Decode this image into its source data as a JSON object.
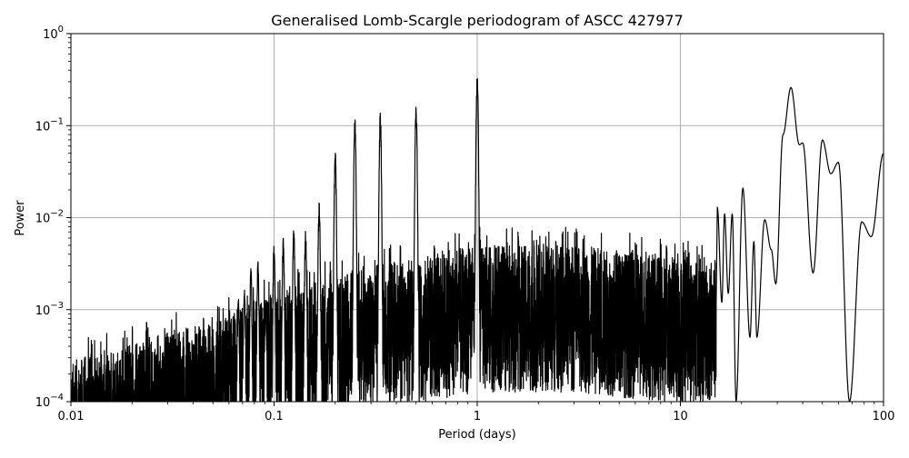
{
  "chart_data": {
    "type": "line",
    "title": "Generalised Lomb-Scargle periodogram of ASCC 427977",
    "xlabel": "Period (days)",
    "ylabel": "Power",
    "xscale": "log",
    "yscale": "log",
    "xlim": [
      0.01,
      100
    ],
    "ylim": [
      0.0001,
      1
    ],
    "grid": true,
    "legend": null,
    "x_ticks": [
      0.01,
      0.1,
      1,
      10,
      100
    ],
    "x_tick_labels": [
      "0.01",
      "0.1",
      "1",
      "10",
      "100"
    ],
    "y_ticks": [
      0.0001,
      0.001,
      0.01,
      0.1,
      1
    ],
    "y_tick_labels": [
      {
        "base": "10",
        "exp": "−4"
      },
      {
        "base": "10",
        "exp": "−3"
      },
      {
        "base": "10",
        "exp": "−2"
      },
      {
        "base": "10",
        "exp": "−1"
      },
      {
        "base": "10",
        "exp": "0"
      }
    ],
    "line_color": "#000000",
    "grid_color": "#b0b0b0",
    "noise_floor": {
      "description": "Dense noise rising with period",
      "points": [
        {
          "period": 0.01,
          "power": 0.00011
        },
        {
          "period": 0.02,
          "power": 0.00018
        },
        {
          "period": 0.05,
          "power": 0.0003
        },
        {
          "period": 0.1,
          "power": 0.0006
        },
        {
          "period": 0.3,
          "power": 0.0012
        },
        {
          "period": 1.0,
          "power": 0.002
        },
        {
          "period": 3.0,
          "power": 0.002
        },
        {
          "period": 10.0,
          "power": 0.0015
        }
      ]
    },
    "alias_peaks": [
      {
        "period": 0.0909,
        "power": 0.0013
      },
      {
        "period": 0.1,
        "power": 0.0058
      },
      {
        "period": 0.111,
        "power": 0.006
      },
      {
        "period": 0.125,
        "power": 0.0085
      },
      {
        "period": 0.1429,
        "power": 0.0073
      },
      {
        "period": 0.1667,
        "power": 0.015
      },
      {
        "period": 0.2,
        "power": 0.055
      },
      {
        "period": 0.25,
        "power": 0.12
      },
      {
        "period": 0.3333,
        "power": 0.14
      },
      {
        "period": 0.5,
        "power": 0.17
      },
      {
        "period": 1.0,
        "power": 0.36
      },
      {
        "period": 0.0833,
        "power": 0.0035
      },
      {
        "period": 0.0769,
        "power": 0.0029
      },
      {
        "period": 0.0714,
        "power": 0.0017
      },
      {
        "period": 0.0667,
        "power": 0.0014
      }
    ],
    "long_period_curve": [
      {
        "period": 15.2,
        "power": 0.013
      },
      {
        "period": 16.0,
        "power": 0.0012
      },
      {
        "period": 16.5,
        "power": 0.011
      },
      {
        "period": 17.2,
        "power": 0.0015
      },
      {
        "period": 18.0,
        "power": 0.011
      },
      {
        "period": 18.8,
        "power": 0.0001
      },
      {
        "period": 20.3,
        "power": 0.021
      },
      {
        "period": 22.0,
        "power": 0.0005
      },
      {
        "period": 23.0,
        "power": 0.0055
      },
      {
        "period": 23.8,
        "power": 0.0005
      },
      {
        "period": 26.0,
        "power": 0.0095
      },
      {
        "period": 28.0,
        "power": 0.0045
      },
      {
        "period": 29.5,
        "power": 0.0019
      },
      {
        "period": 32.0,
        "power": 0.08
      },
      {
        "period": 35.0,
        "power": 0.26
      },
      {
        "period": 38.5,
        "power": 0.062
      },
      {
        "period": 40.0,
        "power": 0.065
      },
      {
        "period": 45.0,
        "power": 0.0025
      },
      {
        "period": 50.0,
        "power": 0.07
      },
      {
        "period": 55.0,
        "power": 0.03
      },
      {
        "period": 60.0,
        "power": 0.04
      },
      {
        "period": 68.0,
        "power": 0.0001
      },
      {
        "period": 78.0,
        "power": 0.009
      },
      {
        "period": 87.0,
        "power": 0.0062
      },
      {
        "period": 100.0,
        "power": 0.05
      }
    ]
  }
}
